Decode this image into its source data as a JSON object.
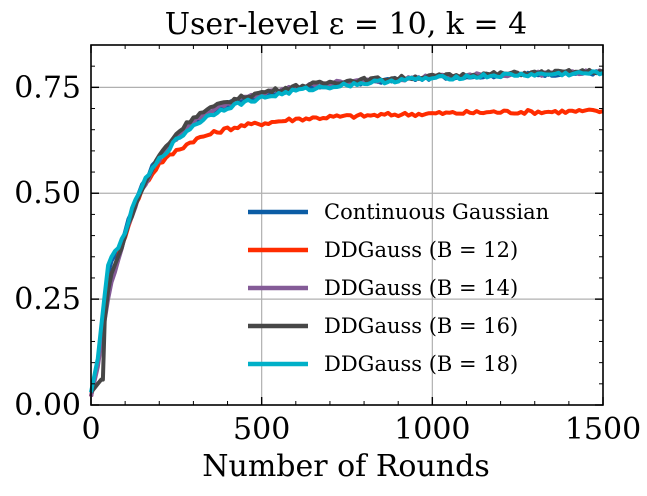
{
  "chart_data": {
    "type": "line",
    "title": "User-level ε = 10,    k = 4",
    "xlabel": "Number of Rounds",
    "ylabel": "",
    "xlim": [
      0,
      1500
    ],
    "ylim": [
      0.0,
      0.85
    ],
    "xticks": [
      0,
      500,
      1000,
      1500
    ],
    "xtick_labels": [
      "0",
      "500",
      "1000",
      "1500"
    ],
    "yticks": [
      0.0,
      0.25,
      0.5,
      0.75
    ],
    "ytick_labels": [
      "0.00",
      "0.25",
      "0.50",
      "0.75"
    ],
    "grid": true,
    "legend_position": "lower-right",
    "series": [
      {
        "name": "Continuous Gaussian",
        "color": "#0c5da5",
        "x": [
          0,
          20,
          40,
          50,
          60,
          80,
          100,
          120,
          150,
          200,
          250,
          300,
          350,
          400,
          450,
          500,
          600,
          700,
          800,
          900,
          1000,
          1100,
          1200,
          1300,
          1400,
          1500
        ],
        "y": [
          0.02,
          0.1,
          0.24,
          0.31,
          0.34,
          0.36,
          0.41,
          0.46,
          0.52,
          0.59,
          0.63,
          0.67,
          0.69,
          0.71,
          0.72,
          0.73,
          0.745,
          0.755,
          0.762,
          0.768,
          0.773,
          0.776,
          0.779,
          0.781,
          0.783,
          0.785
        ]
      },
      {
        "name": "DDGauss (B = 12)",
        "color": "#ff2c00",
        "x": [
          0,
          20,
          40,
          50,
          60,
          80,
          100,
          120,
          150,
          200,
          250,
          300,
          350,
          400,
          450,
          500,
          600,
          700,
          800,
          900,
          1000,
          1100,
          1200,
          1300,
          1400,
          1500
        ],
        "y": [
          0.02,
          0.1,
          0.23,
          0.28,
          0.31,
          0.35,
          0.4,
          0.45,
          0.51,
          0.57,
          0.6,
          0.625,
          0.64,
          0.652,
          0.66,
          0.665,
          0.675,
          0.68,
          0.683,
          0.686,
          0.688,
          0.69,
          0.692,
          0.692,
          0.693,
          0.694
        ]
      },
      {
        "name": "DDGauss (B = 14)",
        "color": "#845b97",
        "x": [
          0,
          20,
          40,
          50,
          60,
          80,
          100,
          120,
          150,
          200,
          250,
          300,
          350,
          400,
          450,
          500,
          600,
          700,
          800,
          900,
          1000,
          1100,
          1200,
          1300,
          1400,
          1500
        ],
        "y": [
          0.02,
          0.09,
          0.2,
          0.25,
          0.29,
          0.34,
          0.4,
          0.45,
          0.51,
          0.58,
          0.63,
          0.67,
          0.695,
          0.712,
          0.725,
          0.735,
          0.75,
          0.76,
          0.765,
          0.77,
          0.775,
          0.778,
          0.78,
          0.782,
          0.784,
          0.786
        ]
      },
      {
        "name": "DDGauss (B = 16)",
        "color": "#474747",
        "x": [
          0,
          20,
          30,
          35,
          40,
          50,
          60,
          80,
          100,
          120,
          150,
          200,
          250,
          300,
          350,
          400,
          450,
          500,
          600,
          700,
          800,
          900,
          1000,
          1100,
          1200,
          1300,
          1400,
          1500
        ],
        "y": [
          0.03,
          0.05,
          0.06,
          0.06,
          0.2,
          0.27,
          0.31,
          0.35,
          0.4,
          0.45,
          0.51,
          0.59,
          0.64,
          0.68,
          0.7,
          0.717,
          0.728,
          0.738,
          0.752,
          0.762,
          0.768,
          0.772,
          0.776,
          0.779,
          0.782,
          0.784,
          0.786,
          0.788
        ]
      },
      {
        "name": "DDGauss (B = 18)",
        "color": "#00b0c8",
        "x": [
          0,
          20,
          40,
          50,
          60,
          80,
          100,
          120,
          150,
          200,
          250,
          300,
          350,
          400,
          450,
          500,
          600,
          700,
          800,
          900,
          1000,
          1100,
          1200,
          1300,
          1400,
          1500
        ],
        "y": [
          0.03,
          0.11,
          0.26,
          0.33,
          0.35,
          0.37,
          0.41,
          0.46,
          0.52,
          0.58,
          0.625,
          0.66,
          0.685,
          0.703,
          0.715,
          0.725,
          0.742,
          0.752,
          0.76,
          0.767,
          0.771,
          0.775,
          0.778,
          0.78,
          0.782,
          0.784
        ]
      }
    ]
  }
}
